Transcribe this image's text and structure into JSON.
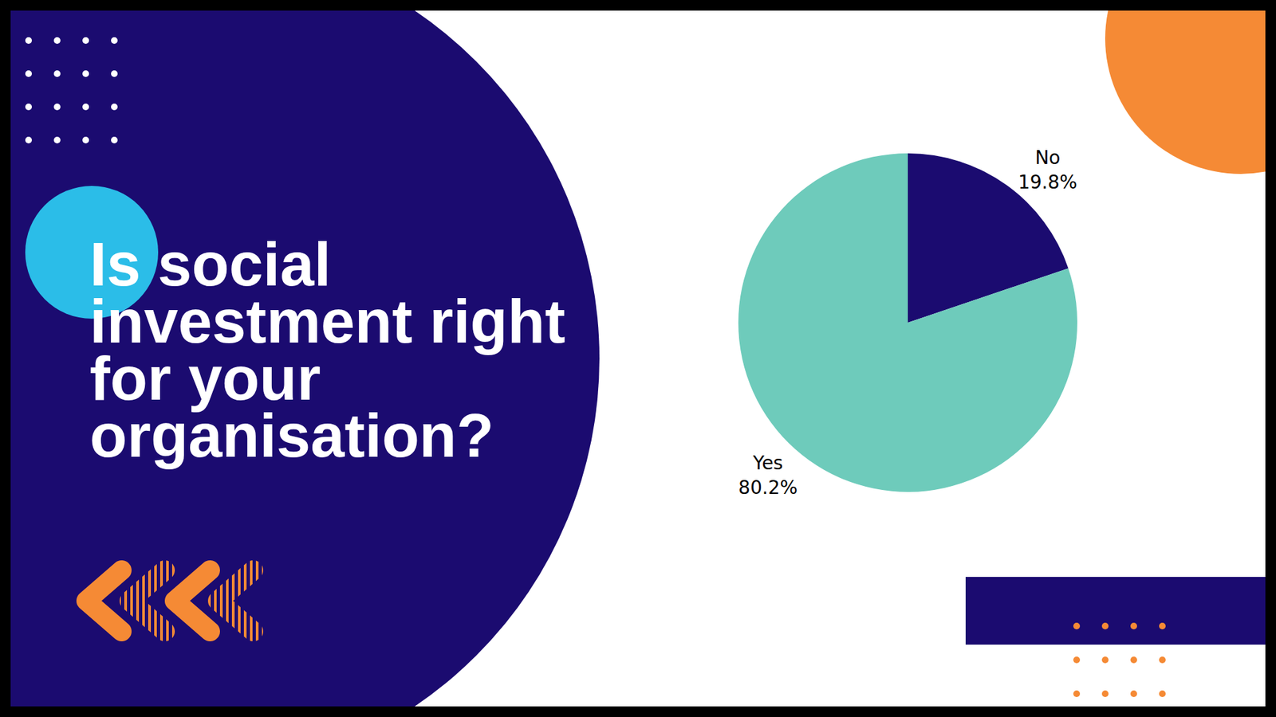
{
  "chart_data": {
    "type": "pie",
    "title": "Is social investment right for your organisation?",
    "categories": [
      "No",
      "Yes"
    ],
    "values": [
      19.8,
      80.2
    ],
    "value_labels": [
      "19.8%",
      "80.2%"
    ],
    "colors": [
      "#1b0b70",
      "#6ecbbb"
    ],
    "data_labels": true
  }
}
